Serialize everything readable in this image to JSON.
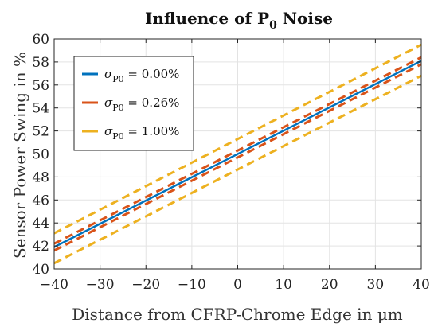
{
  "chart_data": {
    "type": "line",
    "title": "Influence of P",
    "title_subscript": "0",
    "title_suffix": " Noise",
    "xlabel": "Distance from CFRP-Chrome Edge in μm",
    "ylabel": "Sensor Power Swing in %",
    "xlim": [
      -40,
      40
    ],
    "ylim": [
      40,
      60
    ],
    "xticks": [
      -40,
      -30,
      -20,
      -10,
      0,
      10,
      20,
      30,
      40
    ],
    "yticks": [
      40,
      42,
      44,
      46,
      48,
      50,
      52,
      54,
      56,
      58,
      60
    ],
    "xtick_labels": [
      "−40",
      "−30",
      "−20",
      "−10",
      "0",
      "10",
      "20",
      "30",
      "40"
    ],
    "ytick_labels": [
      "40",
      "42",
      "44",
      "46",
      "48",
      "50",
      "52",
      "54",
      "56",
      "58",
      "60"
    ],
    "grid": true,
    "legend_position": "top-left",
    "series": [
      {
        "name": "σP0 = 0.00%",
        "legend_symbol": "σ",
        "legend_sub": "P0",
        "legend_value": " = 0.00%",
        "color": "#0072BD",
        "style": "solid",
        "x": [
          -40,
          40
        ],
        "y": [
          41.9,
          58.1
        ]
      },
      {
        "name": "σP0 = 0.26% (upper)",
        "legend_symbol": "σ",
        "legend_sub": "P0",
        "legend_value": " = 0.26%",
        "color": "#D95319",
        "style": "dashed",
        "x": [
          -40,
          40
        ],
        "y": [
          42.2,
          58.4
        ]
      },
      {
        "name": "σP0 = 0.26% (lower)",
        "color": "#D95319",
        "style": "dashed",
        "x": [
          -40,
          40
        ],
        "y": [
          41.6,
          57.8
        ]
      },
      {
        "name": "σP0 = 1.00% (upper)",
        "legend_symbol": "σ",
        "legend_sub": "P0",
        "legend_value": " = 1.00%",
        "color": "#EDB120",
        "style": "dashed",
        "x": [
          -40,
          40
        ],
        "y": [
          43.1,
          59.5
        ]
      },
      {
        "name": "σP0 = 1.00% (lower)",
        "color": "#EDB120",
        "style": "dashed",
        "x": [
          -40,
          40
        ],
        "y": [
          40.5,
          56.8
        ]
      }
    ],
    "legend_entries": [
      0,
      1,
      3
    ]
  }
}
